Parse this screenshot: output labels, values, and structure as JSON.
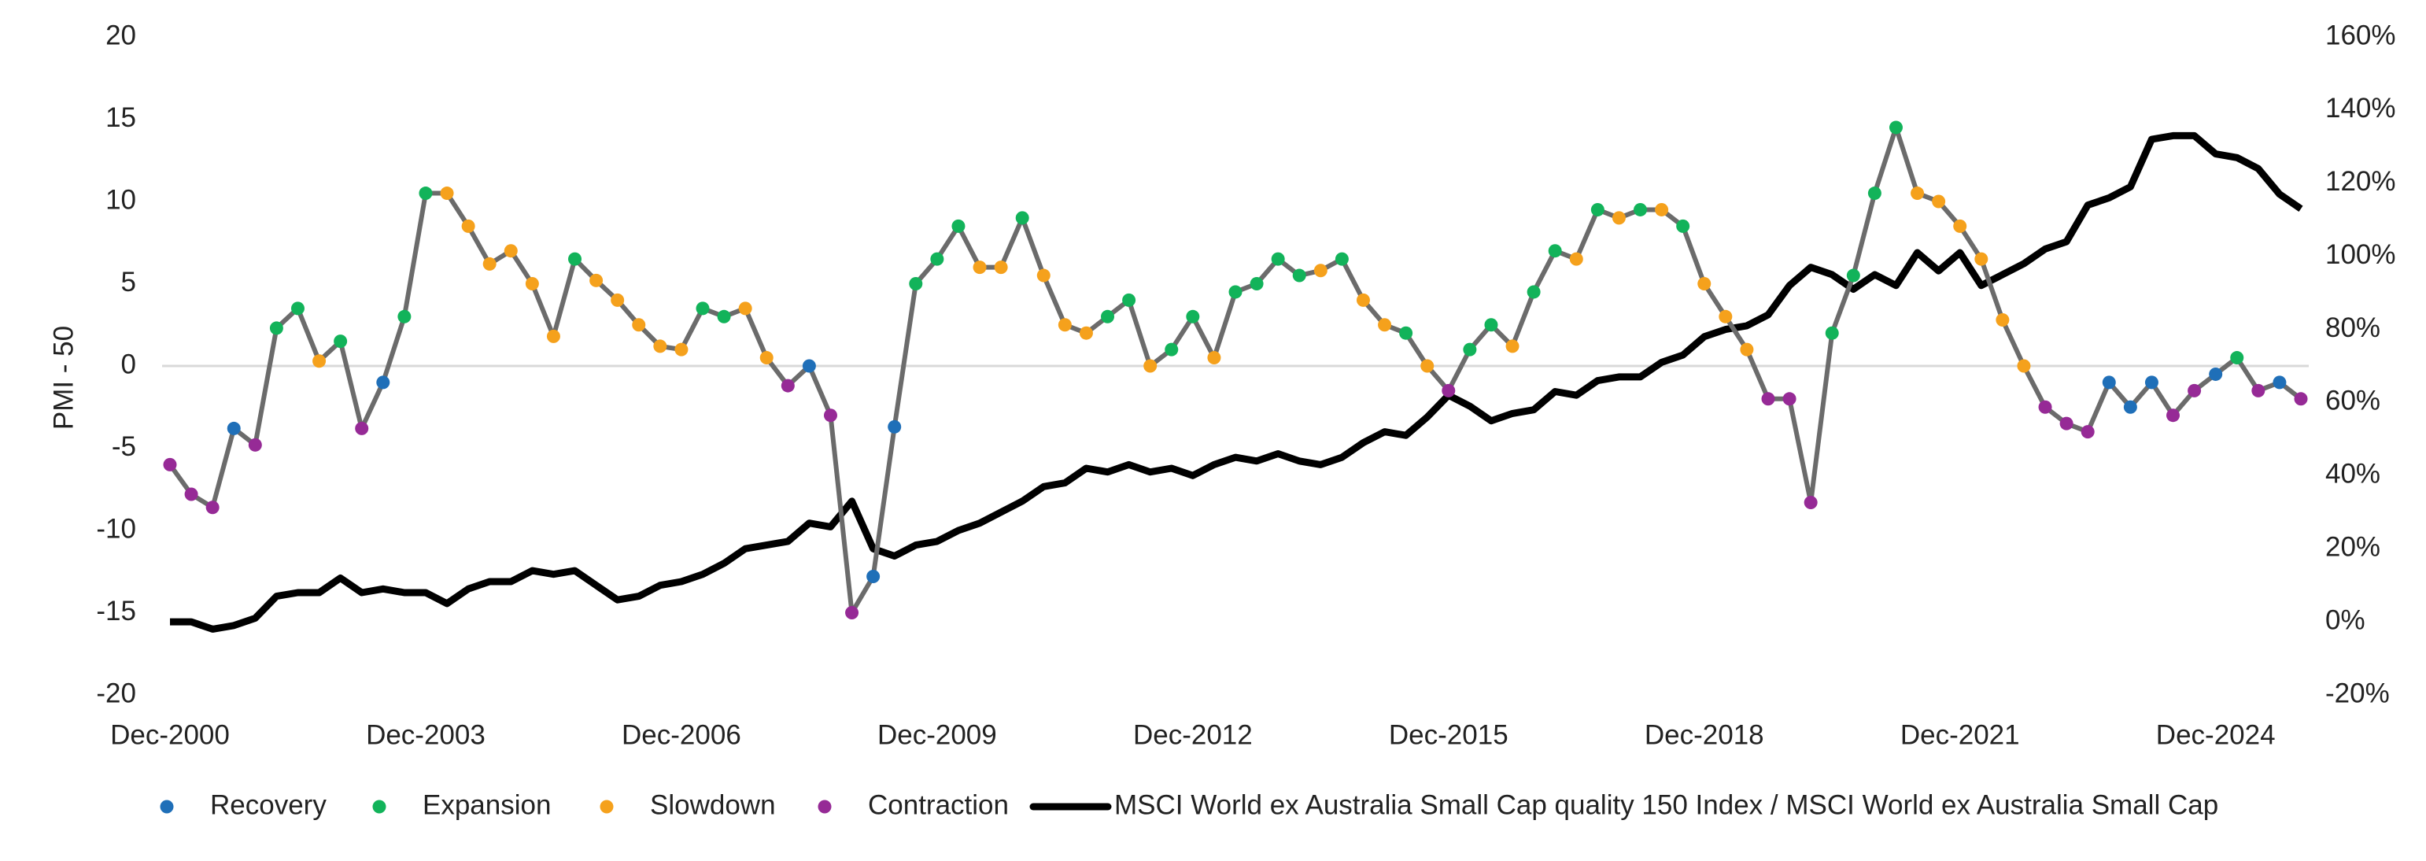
{
  "chart_data": {
    "type": "line",
    "y_label": "PMI - 50",
    "x": [
      "Dec-2000",
      "Mar-2001",
      "Jun-2001",
      "Sep-2001",
      "Dec-2001",
      "Mar-2002",
      "Jun-2002",
      "Sep-2002",
      "Dec-2002",
      "Mar-2003",
      "Jun-2003",
      "Sep-2003",
      "Dec-2003",
      "Mar-2004",
      "Jun-2004",
      "Sep-2004",
      "Dec-2004",
      "Mar-2005",
      "Jun-2005",
      "Sep-2005",
      "Dec-2005",
      "Mar-2006",
      "Jun-2006",
      "Sep-2006",
      "Dec-2006",
      "Mar-2007",
      "Jun-2007",
      "Sep-2007",
      "Dec-2007",
      "Mar-2008",
      "Jun-2008",
      "Sep-2008",
      "Dec-2008",
      "Mar-2009",
      "Jun-2009",
      "Sep-2009",
      "Dec-2009",
      "Mar-2010",
      "Jun-2010",
      "Sep-2010",
      "Dec-2010",
      "Mar-2011",
      "Jun-2011",
      "Sep-2011",
      "Dec-2011",
      "Mar-2012",
      "Jun-2012",
      "Sep-2012",
      "Dec-2012",
      "Mar-2013",
      "Jun-2013",
      "Sep-2013",
      "Dec-2013",
      "Mar-2014",
      "Jun-2014",
      "Sep-2014",
      "Dec-2014",
      "Mar-2015",
      "Jun-2015",
      "Sep-2015",
      "Dec-2015",
      "Mar-2016",
      "Jun-2016",
      "Sep-2016",
      "Dec-2016",
      "Mar-2017",
      "Jun-2017",
      "Sep-2017",
      "Dec-2017",
      "Mar-2018",
      "Jun-2018",
      "Sep-2018",
      "Dec-2018",
      "Mar-2019",
      "Jun-2019",
      "Sep-2019",
      "Dec-2019",
      "Mar-2020",
      "Jun-2020",
      "Sep-2020",
      "Dec-2020",
      "Mar-2021",
      "Jun-2021",
      "Sep-2021",
      "Dec-2021",
      "Mar-2022",
      "Jun-2022",
      "Sep-2022",
      "Dec-2022",
      "Mar-2023",
      "Jun-2023",
      "Sep-2023",
      "Dec-2023",
      "Mar-2024",
      "Jun-2024",
      "Sep-2024",
      "Dec-2024",
      "Mar-2025",
      "Jun-2025",
      "Sep-2025",
      "Dec-2025"
    ],
    "xticks": [
      "Dec-2000",
      "Dec-2003",
      "Dec-2006",
      "Dec-2009",
      "Dec-2012",
      "Dec-2015",
      "Dec-2018",
      "Dec-2021",
      "Dec-2024"
    ],
    "ylim": [
      -20,
      20
    ],
    "yticks": [
      -20,
      -15,
      -10,
      -5,
      0,
      5,
      10,
      15,
      20
    ],
    "y2lim": [
      -20,
      160
    ],
    "y2ticks": [
      {
        "value": -20,
        "label": "-20%"
      },
      {
        "value": 0,
        "label": "0%"
      },
      {
        "value": 20,
        "label": "20%"
      },
      {
        "value": 40,
        "label": "40%"
      },
      {
        "value": 60,
        "label": "60%"
      },
      {
        "value": 80,
        "label": "80%"
      },
      {
        "value": 100,
        "label": "100%"
      },
      {
        "value": 120,
        "label": "120%"
      },
      {
        "value": 140,
        "label": "140%"
      },
      {
        "value": 160,
        "label": "160%"
      }
    ],
    "zero_line": true,
    "connector_color": "#6b6b6b",
    "legend": "bottom",
    "series": [
      {
        "name": "Recovery",
        "color": "#1f6fb8",
        "marker": "dot",
        "values": [
          null,
          null,
          null,
          -3.8,
          null,
          null,
          null,
          null,
          null,
          null,
          -1,
          null,
          null,
          null,
          null,
          null,
          null,
          null,
          null,
          null,
          null,
          null,
          null,
          null,
          null,
          null,
          null,
          null,
          null,
          null,
          0,
          null,
          null,
          -12.8,
          -3.7,
          null,
          null,
          null,
          null,
          null,
          null,
          null,
          null,
          null,
          null,
          null,
          null,
          null,
          null,
          null,
          null,
          null,
          null,
          null,
          null,
          null,
          null,
          null,
          null,
          null,
          null,
          null,
          null,
          null,
          null,
          null,
          null,
          null,
          null,
          null,
          null,
          null,
          null,
          null,
          null,
          null,
          null,
          null,
          null,
          null,
          null,
          null,
          null,
          null,
          null,
          null,
          null,
          null,
          null,
          null,
          null,
          -1,
          -2.5,
          -1,
          null,
          null,
          -0.5,
          null,
          null,
          -1,
          null
        ]
      },
      {
        "name": "Expansion",
        "color": "#12b35a",
        "marker": "dot",
        "values": [
          null,
          null,
          null,
          null,
          null,
          2.3,
          3.5,
          null,
          1.5,
          null,
          null,
          3,
          10.5,
          null,
          null,
          null,
          null,
          null,
          null,
          6.5,
          null,
          null,
          null,
          null,
          null,
          3.5,
          3,
          null,
          null,
          null,
          null,
          null,
          null,
          null,
          null,
          5,
          6.5,
          8.5,
          null,
          null,
          9,
          null,
          null,
          null,
          3,
          4,
          null,
          1,
          3,
          null,
          4.5,
          5,
          6.5,
          5.5,
          null,
          6.5,
          null,
          null,
          2,
          null,
          null,
          1,
          2.5,
          null,
          4.5,
          7,
          null,
          9.5,
          null,
          9.5,
          null,
          8.5,
          null,
          null,
          null,
          null,
          null,
          null,
          2,
          5.5,
          10.5,
          14.5,
          null,
          null,
          null,
          null,
          null,
          null,
          null,
          null,
          null,
          null,
          null,
          null,
          null,
          null,
          null,
          0.5,
          null,
          null,
          null
        ]
      },
      {
        "name": "Slowdown",
        "color": "#f5a11c",
        "marker": "dot",
        "values": [
          null,
          null,
          null,
          null,
          null,
          null,
          null,
          0.3,
          null,
          null,
          null,
          null,
          null,
          10.5,
          8.5,
          6.2,
          7,
          5,
          1.8,
          null,
          5.2,
          4,
          2.5,
          1.2,
          1,
          null,
          null,
          3.5,
          0.5,
          null,
          null,
          null,
          null,
          null,
          null,
          null,
          null,
          null,
          6,
          6,
          null,
          5.5,
          2.5,
          2,
          null,
          null,
          0,
          null,
          null,
          0.5,
          null,
          null,
          null,
          null,
          5.8,
          null,
          4,
          2.5,
          null,
          0,
          null,
          null,
          null,
          1.2,
          null,
          null,
          6.5,
          null,
          9,
          null,
          9.5,
          null,
          5,
          3,
          1,
          null,
          null,
          null,
          null,
          null,
          null,
          null,
          10.5,
          10,
          8.5,
          6.5,
          2.8,
          0,
          null,
          null,
          null,
          null,
          null,
          null,
          null,
          null,
          null,
          null,
          null,
          null,
          null
        ]
      },
      {
        "name": "Contraction",
        "color": "#962a96",
        "marker": "dot",
        "values": [
          -6,
          -7.8,
          -8.6,
          null,
          -4.8,
          null,
          null,
          null,
          null,
          -3.8,
          null,
          null,
          null,
          null,
          null,
          null,
          null,
          null,
          null,
          null,
          null,
          null,
          null,
          null,
          null,
          null,
          null,
          null,
          null,
          -1.2,
          null,
          -3,
          -15,
          null,
          null,
          null,
          null,
          null,
          null,
          null,
          null,
          null,
          null,
          null,
          null,
          null,
          null,
          null,
          null,
          null,
          null,
          null,
          null,
          null,
          null,
          null,
          null,
          null,
          null,
          null,
          -1.5,
          null,
          null,
          null,
          null,
          null,
          null,
          null,
          null,
          null,
          null,
          null,
          null,
          null,
          null,
          -2,
          -2,
          -8.3,
          null,
          null,
          null,
          null,
          null,
          null,
          null,
          null,
          null,
          null,
          -2.5,
          -3.5,
          -4,
          null,
          null,
          null,
          -3,
          -1.5,
          null,
          null,
          -1.5,
          null,
          -2
        ]
      },
      {
        "name": "MSCI World ex Australia Small Cap quality 150 Index / MSCI World ex Australia Small Cap",
        "color": "#000000",
        "marker": "line",
        "axis": "y2",
        "values": [
          0,
          0,
          -2,
          -1,
          1,
          7,
          8,
          8,
          12,
          8,
          9,
          8,
          8,
          5,
          9,
          11,
          11,
          14,
          13,
          14,
          10,
          6,
          7,
          10,
          11,
          13,
          16,
          20,
          21,
          22,
          27,
          26,
          33,
          20,
          18,
          21,
          22,
          25,
          27,
          30,
          33,
          37,
          38,
          42,
          41,
          43,
          41,
          42,
          40,
          43,
          45,
          44,
          46,
          44,
          43,
          45,
          49,
          52,
          51,
          56,
          62,
          59,
          55,
          57,
          58,
          63,
          62,
          66,
          67,
          67,
          71,
          73,
          78,
          80,
          81,
          84,
          92,
          97,
          95,
          91,
          95,
          92,
          101,
          96,
          101,
          92,
          95,
          98,
          102,
          104,
          114,
          116,
          119,
          132,
          133,
          133,
          128,
          127,
          124,
          117,
          113
        ]
      }
    ]
  }
}
